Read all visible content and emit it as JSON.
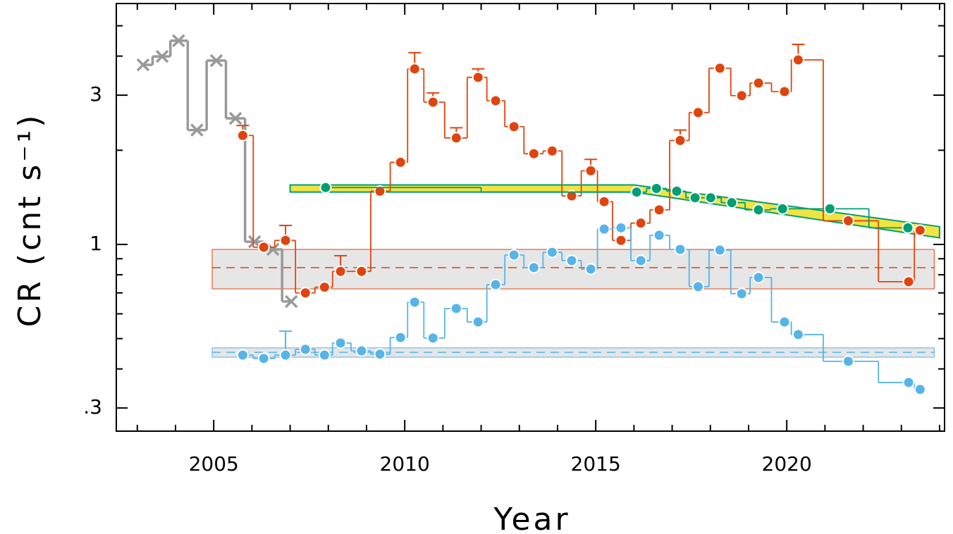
{
  "chart_data": {
    "type": "line",
    "x_label": "Year",
    "y_label": "CR (cnt s⁻¹)",
    "log_y": true,
    "step": "mid",
    "xlim": [
      2002.45,
      2024.13
    ],
    "ylim": [
      0.253,
      5.89
    ],
    "xticks": [
      2005,
      2010,
      2015,
      2020
    ],
    "xminor_ticks": [
      2003,
      2004,
      2006,
      2007,
      2008,
      2009,
      2011,
      2012,
      2013,
      2014,
      2016,
      2017,
      2018,
      2019,
      2021,
      2022,
      2023,
      2024
    ],
    "yticks": [
      {
        "value": 0.3,
        "label": ".3"
      },
      1,
      3
    ],
    "yminor_ticks": [
      0.4,
      0.5,
      0.6,
      0.7,
      0.8,
      0.9,
      2,
      4,
      5
    ],
    "bands": [
      {
        "color": "#e0440e",
        "x": [
          2004.96,
          2023.86
        ],
        "lower": 0.721,
        "upper": 0.964,
        "mean": 0.843
      },
      {
        "color": "#56b4e9",
        "x": [
          2004.96,
          2023.86
        ],
        "lower": 0.436,
        "upper": 0.467,
        "mean": 0.452
      }
    ],
    "model_band": {
      "color": "#f0e442",
      "edge_color": "#009e73",
      "x": [
        2007,
        2016,
        2024
      ],
      "lower": [
        1.47,
        1.47,
        1.05
      ],
      "upper": [
        1.55,
        1.55,
        1.14
      ]
    },
    "series": [
      {
        "color": "#999999",
        "marker": "x",
        "x": [
          2003.15,
          2003.65,
          2004.08,
          2004.56,
          2005.07,
          2005.57,
          2006.07,
          2006.55,
          2007.03
        ],
        "values": [
          3.75,
          3.99,
          4.48,
          2.32,
          3.87,
          2.53,
          1.02,
          0.964,
          0.657
        ]
      },
      {
        "color": "#e0440e",
        "marker": "circle",
        "x": [
          2005.76,
          2006.31,
          2006.88,
          2007.4,
          2007.9,
          2008.32,
          2008.87,
          2009.35,
          2009.89,
          2010.26,
          2010.74,
          2011.35,
          2011.92,
          2012.38,
          2012.86,
          2013.38,
          2013.86,
          2014.37,
          2014.87,
          2015.22,
          2015.66,
          2016.18,
          2016.66,
          2017.21,
          2017.68,
          2018.25,
          2018.82,
          2019.26,
          2019.94,
          2020.3,
          2021.61,
          2023.19,
          2023.49
        ],
        "values": [
          2.23,
          0.98,
          1.03,
          0.7,
          0.73,
          0.82,
          0.82,
          1.48,
          1.83,
          3.64,
          2.85,
          2.19,
          3.42,
          2.88,
          2.38,
          1.95,
          1.99,
          1.43,
          1.72,
          1.37,
          1.03,
          1.17,
          1.29,
          2.15,
          2.64,
          3.66,
          2.99,
          3.28,
          3.08,
          3.89,
          1.19,
          0.76,
          1.11
        ],
        "err_upper": [
          0.17,
          null,
          0.12,
          null,
          null,
          0.1,
          null,
          null,
          null,
          0.46,
          0.2,
          0.17,
          0.22,
          null,
          null,
          null,
          null,
          null,
          0.15,
          null,
          null,
          null,
          null,
          0.17,
          null,
          null,
          null,
          null,
          null,
          0.47,
          null,
          null,
          null
        ]
      },
      {
        "color": "#56b4e9",
        "marker": "circle",
        "x": [
          2005.76,
          2006.31,
          2006.88,
          2007.4,
          2007.9,
          2008.32,
          2008.87,
          2009.35,
          2009.89,
          2010.26,
          2010.74,
          2011.35,
          2011.92,
          2012.38,
          2012.86,
          2013.38,
          2013.86,
          2014.37,
          2014.87,
          2015.22,
          2015.66,
          2016.18,
          2016.66,
          2017.21,
          2017.68,
          2018.25,
          2018.82,
          2019.26,
          2019.94,
          2020.3,
          2021.61,
          2023.19,
          2023.49
        ],
        "values": [
          0.443,
          0.432,
          0.443,
          0.462,
          0.443,
          0.484,
          0.457,
          0.446,
          0.504,
          0.654,
          0.502,
          0.624,
          0.565,
          0.744,
          0.925,
          0.843,
          0.944,
          0.888,
          0.834,
          1.12,
          1.13,
          0.888,
          1.07,
          0.964,
          0.733,
          0.959,
          0.696,
          0.784,
          0.565,
          0.515,
          0.423,
          0.362,
          0.344
        ],
        "err_upper": [
          null,
          null,
          0.085,
          null,
          null,
          null,
          null,
          null,
          null,
          null,
          null,
          null,
          null,
          null,
          null,
          null,
          null,
          null,
          null,
          null,
          null,
          null,
          null,
          null,
          null,
          null,
          null,
          null,
          null,
          null,
          null,
          null,
          null
        ]
      },
      {
        "color": "#009e73",
        "marker": "circle",
        "x": [
          2007.93,
          2016.07,
          2016.59,
          2017.12,
          2017.6,
          2018.01,
          2018.56,
          2019.26,
          2019.89,
          2021.13,
          2023.17
        ],
        "values": [
          1.52,
          1.47,
          1.51,
          1.48,
          1.41,
          1.41,
          1.36,
          1.29,
          1.3,
          1.3,
          1.13
        ]
      }
    ]
  }
}
